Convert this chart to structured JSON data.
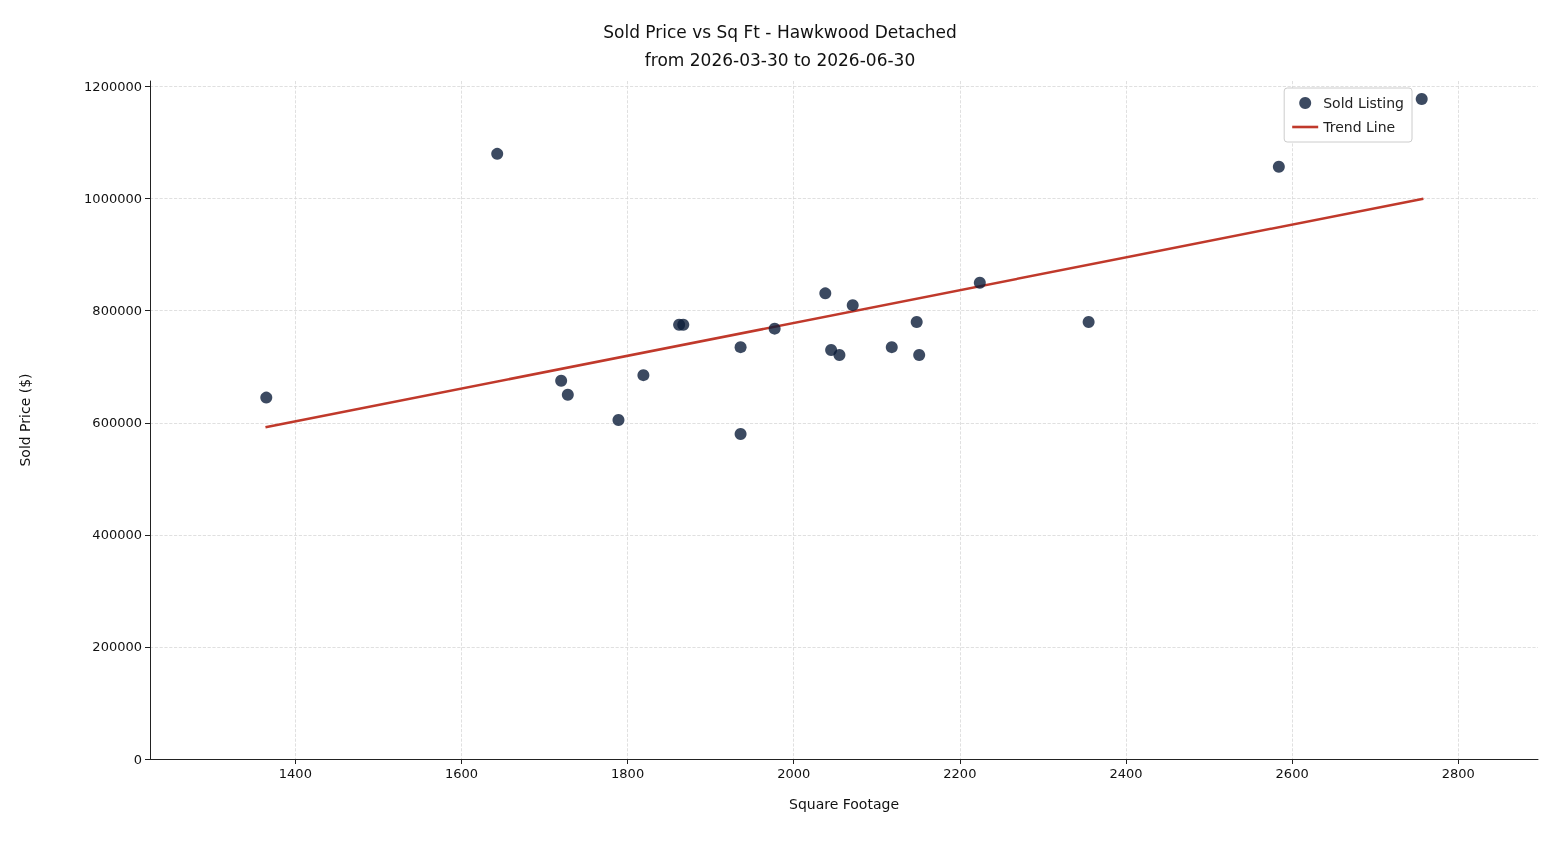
{
  "chart_data": {
    "type": "scatter",
    "title": "Sold Price vs Sq Ft - Hawkwood Detached",
    "subtitle": "from 2026-03-30 to 2026-06-30",
    "xlabel": "Square Footage",
    "ylabel": "Sold Price ($)",
    "series": [
      {
        "name": "Sold Listing",
        "type": "scatter",
        "color": "#0b1d3a",
        "marker": "circle",
        "x": [
          1365,
          1643,
          1720,
          1728,
          1789,
          1819,
          1862,
          1867,
          1936,
          1936,
          1977,
          2038,
          2045,
          2055,
          2071,
          2118,
          2148,
          2151,
          2224,
          2355,
          2584,
          2756
        ],
        "values": [
          645000,
          1080000,
          675000,
          650000,
          605000,
          685000,
          775000,
          775000,
          735000,
          580000,
          768000,
          831000,
          730000,
          721000,
          810000,
          735000,
          780000,
          721000,
          850000,
          780000,
          1057000,
          1178000
        ]
      },
      {
        "name": "Trend Line",
        "type": "line",
        "color": "#c0392b",
        "marker": "none",
        "line_style": "solid",
        "x": [
          1364,
          2758
        ],
        "values": [
          592000,
          1000000
        ]
      }
    ],
    "xlim": [
      1225,
      2896
    ],
    "ylim": [
      0,
      1210000
    ],
    "xticks": [
      1400,
      1600,
      1800,
      2000,
      2200,
      2400,
      2600,
      2800
    ],
    "yticks": [
      0,
      200000,
      400000,
      600000,
      800000,
      1000000,
      1200000
    ],
    "grid": true,
    "legend": "top right"
  }
}
